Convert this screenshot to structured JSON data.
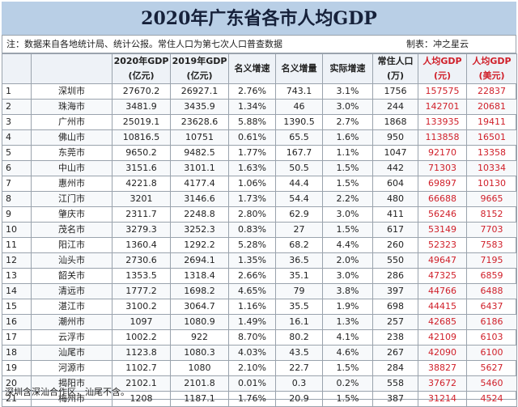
{
  "title": "2020年广东省各市人均GDP",
  "note": {
    "left": "注：数据来自各地统计局、统计公报。常住人口为第七次人口普查数据",
    "right": "制表：冲之星云"
  },
  "headers": [
    "",
    "",
    "2020年GDP\n(亿元)",
    "2019年GDP\n(亿元)",
    "名义增速",
    "名义增量",
    "实际增速",
    "常住人口\n(万)",
    "人均GDP\n(元)",
    "人均GDP\n(美元)"
  ],
  "rows": [
    [
      "1",
      "深圳市",
      "27670.2",
      "26927.1",
      "2.76%",
      "743.1",
      "3.1%",
      "1756",
      "157575",
      "22837"
    ],
    [
      "2",
      "珠海市",
      "3481.9",
      "3435.9",
      "1.34%",
      "46",
      "3.0%",
      "244",
      "142701",
      "20681"
    ],
    [
      "3",
      "广州市",
      "25019.1",
      "23628.6",
      "5.88%",
      "1390.5",
      "2.7%",
      "1868",
      "133935",
      "19411"
    ],
    [
      "4",
      "佛山市",
      "10816.5",
      "10751",
      "0.61%",
      "65.5",
      "1.6%",
      "950",
      "113858",
      "16501"
    ],
    [
      "5",
      "东莞市",
      "9650.2",
      "9482.5",
      "1.77%",
      "167.7",
      "1.1%",
      "1047",
      "92170",
      "13358"
    ],
    [
      "6",
      "中山市",
      "3151.6",
      "3101.1",
      "1.63%",
      "50.5",
      "1.5%",
      "442",
      "71303",
      "10334"
    ],
    [
      "7",
      "惠州市",
      "4221.8",
      "4177.4",
      "1.06%",
      "44.4",
      "1.5%",
      "604",
      "69897",
      "10130"
    ],
    [
      "8",
      "江门市",
      "3201",
      "3146.6",
      "1.73%",
      "54.4",
      "2.2%",
      "480",
      "66688",
      "9665"
    ],
    [
      "9",
      "肇庆市",
      "2311.7",
      "2248.8",
      "2.80%",
      "62.9",
      "3.0%",
      "411",
      "56246",
      "8152"
    ],
    [
      "10",
      "茂名市",
      "3279.3",
      "3252.3",
      "0.83%",
      "27",
      "1.5%",
      "617",
      "53149",
      "7703"
    ],
    [
      "11",
      "阳江市",
      "1360.4",
      "1292.2",
      "5.28%",
      "68.2",
      "4.4%",
      "260",
      "52323",
      "7583"
    ],
    [
      "12",
      "汕头市",
      "2730.6",
      "2694.1",
      "1.35%",
      "36.5",
      "2.0%",
      "550",
      "49647",
      "7195"
    ],
    [
      "13",
      "韶关市",
      "1353.5",
      "1318.4",
      "2.66%",
      "35.1",
      "3.0%",
      "286",
      "47325",
      "6859"
    ],
    [
      "14",
      "清远市",
      "1777.2",
      "1698.2",
      "4.65%",
      "79",
      "3.8%",
      "397",
      "44766",
      "6488"
    ],
    [
      "15",
      "湛江市",
      "3100.2",
      "3064.7",
      "1.16%",
      "35.5",
      "1.9%",
      "698",
      "44415",
      "6437"
    ],
    [
      "16",
      "潮州市",
      "1097",
      "1080.9",
      "1.49%",
      "16.1",
      "1.3%",
      "257",
      "42685",
      "6186"
    ],
    [
      "17",
      "云浮市",
      "1002.2",
      "922",
      "8.70%",
      "80.2",
      "4.1%",
      "238",
      "42109",
      "6103"
    ],
    [
      "18",
      "汕尾市",
      "1123.8",
      "1080.3",
      "4.03%",
      "43.5",
      "4.6%",
      "267",
      "42090",
      "6100"
    ],
    [
      "19",
      "河源市",
      "1102.7",
      "1080",
      "2.10%",
      "22.7",
      "1.5%",
      "284",
      "38827",
      "5627"
    ],
    [
      "20",
      "揭阳市",
      "2102.1",
      "2101.8",
      "0.01%",
      "0.3",
      "0.2%",
      "558",
      "37672",
      "5460"
    ],
    [
      "21",
      "梅州市",
      "1208",
      "1187.1",
      "1.76%",
      "20.9",
      "1.5%",
      "387",
      "31214",
      "4524"
    ]
  ],
  "footer": "深圳含深汕合作区，汕尾不含。"
}
